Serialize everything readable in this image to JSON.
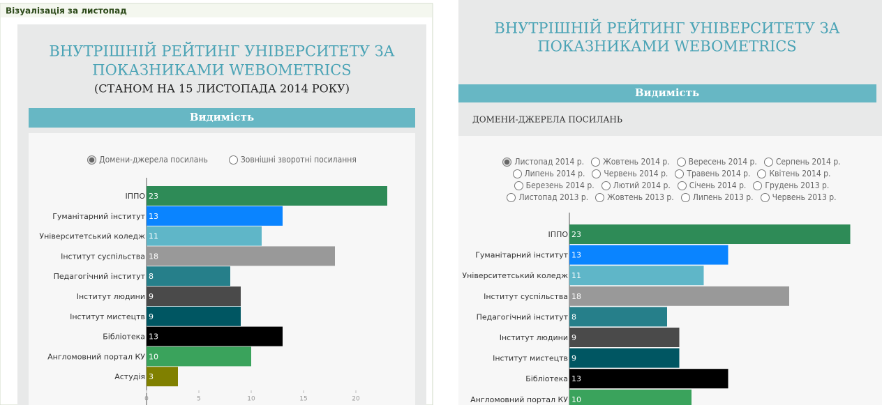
{
  "header": "Візуалізація за листопад",
  "panels": [
    {
      "title_lines": [
        "ВНУТРІШНІЙ РЕЙТИНГ УНІВЕРСИТЕТУ ЗА",
        "ПОКАЗНИКАМИ WEBOMETRICS"
      ],
      "subtitle": "(СТАНОМ НА 15 ЛИСТОПАДА 2014 РОКУ)",
      "section": "Видимість",
      "radios": [
        "Домени-джерела посилань",
        "Зовнішні зворотні посилання"
      ],
      "selected": 0
    },
    {
      "title_lines": [
        "ВНУТРІШНІЙ РЕЙТИНГ УНІВЕРСИТЕТУ ЗА",
        "ПОКАЗНИКАМИ WEBOMETRICS"
      ],
      "section": "Видимість",
      "subsection": "ДОМЕНИ-ДЖЕРЕЛА ПОСИЛАНЬ",
      "radios": [
        "Листопад 2014 р.",
        "Жовтень 2014 р.",
        "Вересень 2014 р.",
        "Серпень 2014 р.",
        "Липень 2014 р.",
        "Червень 2014 р.",
        "Травень 2014 р.",
        "Квітень 2014 р.",
        "Березень 2014 р.",
        "Лютий 2014 р.",
        "Січень 2014 р.",
        "Грудень 2013 р.",
        "Листопад 2013 р.",
        "Жовтень 2013 р.",
        "Липень 2013 р.",
        "Червень 2013 р."
      ],
      "selected": 0
    }
  ],
  "chart_data": [
    {
      "type": "hbar",
      "categories": [
        "ІППО",
        "Гуманітарний інститут",
        "Університетський коледж",
        "Інститут суспільства",
        "Педагогічний інститут",
        "Інститут людини",
        "Інститут мистецтв",
        "Бібліотека",
        "Англомовний портал КУ",
        "Астудія"
      ],
      "values": [
        23,
        13,
        11,
        18,
        8,
        9,
        9,
        13,
        10,
        3
      ],
      "colors": [
        "#2e8b57",
        "#0a84ff",
        "#5fb6c8",
        "#999999",
        "#267f8a",
        "#4a4a4a",
        "#005662",
        "#000000",
        "#3aa35c",
        "#808000"
      ],
      "xlim": [
        0,
        25
      ],
      "xticks": [
        0,
        5,
        10,
        15,
        20
      ]
    },
    {
      "type": "hbar",
      "categories": [
        "ІППО",
        "Гуманітарний інститут",
        "Університетський коледж",
        "Інститут суспільства",
        "Педагогічний інститут",
        "Інститут людини",
        "Інститут мистецтв",
        "Бібліотека",
        "Англомовний портал КУ"
      ],
      "values": [
        23,
        13,
        11,
        18,
        8,
        9,
        9,
        13,
        10
      ],
      "colors": [
        "#2e8b57",
        "#0a84ff",
        "#5fb6c8",
        "#999999",
        "#267f8a",
        "#4a4a4a",
        "#005662",
        "#000000",
        "#3aa35c"
      ],
      "xlim": [
        0,
        24
      ]
    }
  ]
}
